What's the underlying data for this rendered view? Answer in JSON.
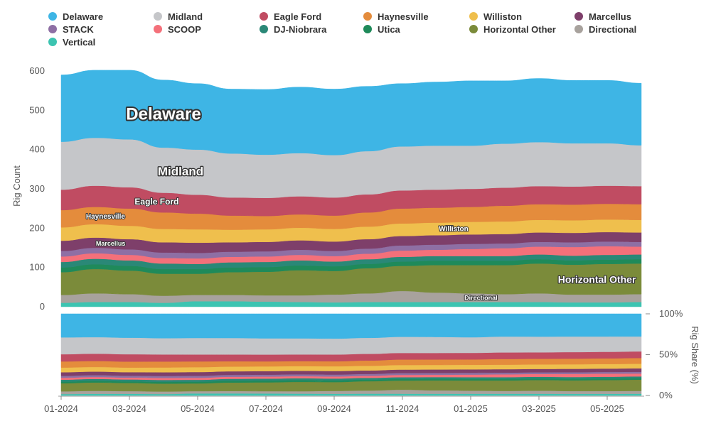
{
  "chart_data": [
    {
      "type": "area",
      "stacked": true,
      "ylabel": "Rig Count",
      "ylim": [
        0,
        600
      ],
      "yticks": [
        0,
        100,
        200,
        300,
        400,
        500,
        600
      ],
      "legend": "top",
      "grid": false,
      "x": [
        "2024-01",
        "2024-02",
        "2024-03",
        "2024-04",
        "2024-05",
        "2024-06",
        "2024-07",
        "2024-08",
        "2024-09",
        "2024-10",
        "2024-11",
        "2024-12",
        "2025-01",
        "2025-02",
        "2025-03",
        "2025-04",
        "2025-05",
        "2025-06"
      ],
      "xtick_labels": [
        "01-2024",
        "03-2024",
        "05-2024",
        "07-2024",
        "09-2024",
        "11-2024",
        "01-2025",
        "03-2025",
        "05-2025"
      ],
      "series": [
        {
          "name": "Vertical",
          "color": "#3cc4b1",
          "values": [
            10,
            12,
            12,
            10,
            14,
            14,
            13,
            12,
            11,
            12,
            12,
            12,
            12,
            12,
            12,
            11,
            11,
            12
          ]
        },
        {
          "name": "Directional",
          "color": "#a8a29d",
          "values": [
            20,
            22,
            20,
            18,
            16,
            16,
            16,
            17,
            20,
            22,
            28,
            24,
            22,
            20,
            22,
            20,
            20,
            20
          ]
        },
        {
          "name": "Horizontal Other",
          "color": "#7b8b3a",
          "values": [
            58,
            62,
            60,
            56,
            54,
            58,
            60,
            64,
            60,
            64,
            64,
            70,
            72,
            74,
            76,
            76,
            78,
            78
          ]
        },
        {
          "name": "Utica",
          "color": "#1f8a5a",
          "values": [
            12,
            12,
            12,
            12,
            12,
            12,
            12,
            12,
            12,
            11,
            11,
            11,
            11,
            11,
            11,
            11,
            11,
            11
          ]
        },
        {
          "name": "DJ-Niobrara",
          "color": "#2a8877",
          "values": [
            14,
            14,
            14,
            14,
            13,
            13,
            13,
            13,
            12,
            12,
            12,
            12,
            12,
            12,
            12,
            12,
            12,
            12
          ]
        },
        {
          "name": "SCOOP",
          "color": "#f4707a",
          "values": [
            14,
            14,
            14,
            14,
            14,
            14,
            14,
            14,
            14,
            14,
            16,
            16,
            18,
            20,
            20,
            22,
            22,
            20
          ]
        },
        {
          "name": "STACK",
          "color": "#8e6fa4",
          "values": [
            14,
            14,
            14,
            14,
            14,
            13,
            13,
            13,
            13,
            13,
            13,
            13,
            13,
            12,
            12,
            12,
            12,
            12
          ]
        },
        {
          "name": "Marcellus",
          "color": "#7e3f6a",
          "values": [
            26,
            26,
            26,
            26,
            26,
            24,
            24,
            24,
            24,
            24,
            24,
            24,
            24,
            24,
            24,
            24,
            24,
            24
          ]
        },
        {
          "name": "Williston",
          "color": "#efbf4d",
          "values": [
            34,
            34,
            34,
            34,
            34,
            32,
            32,
            32,
            32,
            32,
            32,
            32,
            32,
            32,
            32,
            32,
            32,
            32
          ]
        },
        {
          "name": "Haynesville",
          "color": "#e48c3c",
          "values": [
            44,
            44,
            44,
            42,
            40,
            36,
            34,
            34,
            34,
            36,
            38,
            38,
            38,
            40,
            40,
            40,
            40,
            40
          ]
        },
        {
          "name": "Eagle Ford",
          "color": "#c04c62",
          "values": [
            52,
            54,
            54,
            50,
            48,
            46,
            46,
            46,
            46,
            46,
            46,
            46,
            46,
            46,
            46,
            46,
            46,
            46
          ]
        },
        {
          "name": "Midland",
          "color": "#c5c6c9",
          "values": [
            122,
            122,
            122,
            115,
            115,
            112,
            110,
            110,
            108,
            110,
            112,
            112,
            110,
            112,
            112,
            110,
            108,
            104
          ]
        },
        {
          "name": "Delaware",
          "color": "#3eb5e5",
          "values": [
            170,
            172,
            176,
            172,
            168,
            164,
            166,
            168,
            168,
            165,
            160,
            162,
            165,
            160,
            162,
            160,
            160,
            158
          ]
        }
      ],
      "annotations": [
        "Delaware",
        "Midland",
        "Eagle Ford",
        "Haynesville",
        "Marcellus",
        "Williston",
        "Horizontal Other",
        "Directional"
      ]
    },
    {
      "type": "area",
      "stacked": true,
      "normalized": true,
      "ylabel": "Rig Share (%)",
      "ylim": [
        0,
        100
      ],
      "yticks": [
        "0%",
        "50%",
        "100%"
      ],
      "x": [
        "2024-01",
        "2024-02",
        "2024-03",
        "2024-04",
        "2024-05",
        "2024-06",
        "2024-07",
        "2024-08",
        "2024-09",
        "2024-10",
        "2024-11",
        "2024-12",
        "2025-01",
        "2025-02",
        "2025-03",
        "2025-04",
        "2025-05",
        "2025-06"
      ],
      "xtick_labels": [
        "01-2024",
        "03-2024",
        "05-2024",
        "07-2024",
        "09-2024",
        "11-2024",
        "01-2025",
        "03-2025",
        "05-2025"
      ],
      "series_ref": "same as chart 1, shown as share of total"
    }
  ]
}
